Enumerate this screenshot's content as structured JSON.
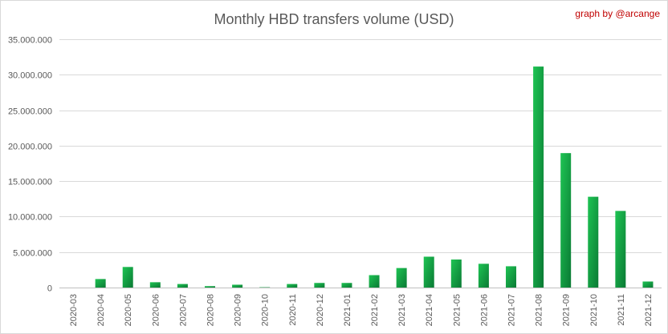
{
  "chart_data": {
    "type": "bar",
    "title": "Monthly HBD transfers volume (USD)",
    "credit": "graph by @arcange",
    "xlabel": "",
    "ylabel": "",
    "ylim": [
      0,
      35000000
    ],
    "yticks": [
      0,
      5000000,
      10000000,
      15000000,
      20000000,
      25000000,
      30000000,
      35000000
    ],
    "ytick_labels": [
      "0",
      "5.000.000",
      "10.000.000",
      "15.000.000",
      "20.000.000",
      "25.000.000",
      "30.000.000",
      "35.000.000"
    ],
    "grid": true,
    "legend": "none",
    "bar_color_light": "#1ec453",
    "bar_color_dark": "#0a7a34",
    "categories": [
      "2020-03",
      "2020-04",
      "2020-05",
      "2020-06",
      "2020-07",
      "2020-08",
      "2020-09",
      "2020-10",
      "2020-11",
      "2020-12",
      "2021-01",
      "2021-02",
      "2021-03",
      "2021-04",
      "2021-05",
      "2021-06",
      "2021-07",
      "2021-08",
      "2021-09",
      "2021-10",
      "2021-11",
      "2021-12"
    ],
    "values": [
      0,
      1200000,
      2900000,
      750000,
      500000,
      200000,
      400000,
      50000,
      500000,
      650000,
      650000,
      1750000,
      2750000,
      4350000,
      3950000,
      3350000,
      3000000,
      31150000,
      18950000,
      12800000,
      10800000,
      850000
    ]
  }
}
